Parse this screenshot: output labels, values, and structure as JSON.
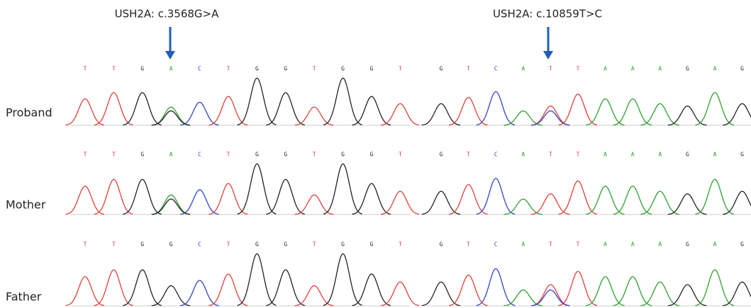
{
  "samples": [
    "Proband",
    "Mother",
    "Father"
  ],
  "panels": [
    {
      "title": "USH2A: c.3568G>A",
      "reads": [
        [
          "T",
          "T",
          "G",
          "A",
          "C",
          "T",
          "G",
          "G",
          "T",
          "G",
          "G",
          "T"
        ],
        [
          "T",
          "T",
          "G",
          "A",
          "C",
          "T",
          "G",
          "G",
          "T",
          "G",
          "G",
          "T"
        ],
        [
          "T",
          "T",
          "G",
          "G",
          "C",
          "T",
          "G",
          "G",
          "T",
          "G",
          "G",
          "T"
        ]
      ]
    },
    {
      "title": "USH2A: c.10859T>C",
      "reads": [
        [
          "G",
          "T",
          "C",
          "A",
          "T",
          "T",
          "A",
          "A",
          "A",
          "G",
          "A",
          "G"
        ],
        [
          "G",
          "T",
          "C",
          "A",
          "T",
          "T",
          "A",
          "A",
          "A",
          "G",
          "A",
          "G"
        ],
        [
          "G",
          "T",
          "C",
          "A",
          "T",
          "T",
          "A",
          "A",
          "A",
          "G",
          "A",
          "G"
        ]
      ]
    }
  ]
}
